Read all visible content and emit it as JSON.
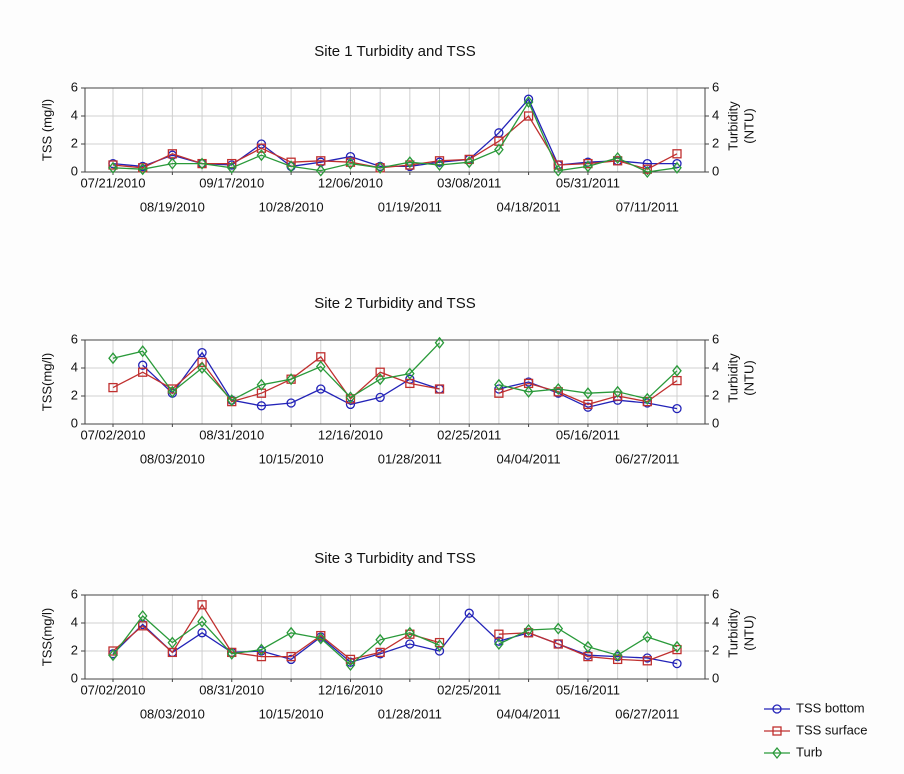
{
  "chart_data": [
    {
      "type": "line",
      "title": "Site 1 Turbidity and TSS",
      "ylabel": "TSS (mg/l)",
      "y2label": [
        "Turbidity",
        "(NTU)"
      ],
      "categories": [
        "07/21/2010",
        null,
        "08/19/2010",
        null,
        "09/17/2010",
        null,
        "10/28/2010",
        null,
        "12/06/2010",
        null,
        "01/19/2011",
        null,
        "03/08/2011",
        null,
        "04/18/2011",
        null,
        "05/31/2011",
        null,
        "07/11/2011",
        null
      ],
      "series": [
        {
          "name": "TSS bottom",
          "color": "#2323b8",
          "marker": "circle",
          "values": [
            0.6,
            0.4,
            1.2,
            0.6,
            0.5,
            2.0,
            0.4,
            0.7,
            1.1,
            0.4,
            0.4,
            0.7,
            0.9,
            2.8,
            5.2,
            0.5,
            0.7,
            0.8,
            0.6,
            0.6
          ]
        },
        {
          "name": "TSS surface",
          "color": "#c0302f",
          "marker": "square",
          "values": [
            0.5,
            0.3,
            1.3,
            0.6,
            0.6,
            1.7,
            0.7,
            0.8,
            0.7,
            0.3,
            0.5,
            0.8,
            0.9,
            2.2,
            4.0,
            0.5,
            0.6,
            0.8,
            0.2,
            1.3
          ]
        },
        {
          "name": "Turb",
          "color": "#2a9a3a",
          "marker": "diamond",
          "axis": "y2",
          "values": [
            0.3,
            0.2,
            0.6,
            0.6,
            0.3,
            1.2,
            0.4,
            0.1,
            0.6,
            0.3,
            0.7,
            0.5,
            0.7,
            1.6,
            5.0,
            0.1,
            0.4,
            1.0,
            0.0,
            0.3
          ]
        }
      ],
      "ylim": [
        0,
        6
      ],
      "yticks": [
        0,
        2,
        4,
        6
      ],
      "y2lim": [
        0,
        6
      ],
      "y2ticks": [
        0,
        2,
        4,
        6
      ],
      "grid": true
    },
    {
      "type": "line",
      "title": "Site 2 Turbidity and TSS",
      "ylabel": "TSS(mg/l)",
      "y2label": [
        "Turbidity",
        "(NTU)"
      ],
      "categories": [
        "07/02/2010",
        null,
        "08/03/2010",
        null,
        "08/31/2010",
        null,
        "10/15/2010",
        null,
        "12/16/2010",
        null,
        "01/28/2011",
        null,
        "02/25/2011",
        null,
        "04/04/2011",
        null,
        "05/16/2011",
        null,
        "06/27/2011",
        null
      ],
      "series": [
        {
          "name": "TSS bottom",
          "color": "#2323b8",
          "marker": "circle",
          "values": [
            null,
            4.2,
            2.2,
            5.1,
            1.7,
            1.3,
            1.5,
            2.5,
            1.4,
            1.9,
            3.2,
            2.5,
            null,
            2.5,
            3.0,
            2.2,
            1.2,
            1.7,
            1.5,
            1.1
          ]
        },
        {
          "name": "TSS surface",
          "color": "#c0302f",
          "marker": "square",
          "values": [
            2.6,
            3.7,
            2.5,
            4.4,
            1.6,
            2.2,
            3.2,
            4.8,
            1.8,
            3.7,
            2.9,
            2.5,
            null,
            2.2,
            2.9,
            2.3,
            1.4,
            2.0,
            1.6,
            3.1
          ]
        },
        {
          "name": "Turb",
          "color": "#2a9a3a",
          "marker": "diamond",
          "axis": "y2",
          "values": [
            4.7,
            5.2,
            2.3,
            4.0,
            1.7,
            2.8,
            3.2,
            4.1,
            1.9,
            3.2,
            3.6,
            5.8,
            null,
            2.8,
            2.3,
            2.5,
            2.2,
            2.3,
            1.8,
            3.8
          ]
        }
      ],
      "ylim": [
        0,
        6
      ],
      "yticks": [
        0,
        2,
        4,
        6
      ],
      "y2lim": [
        0,
        6
      ],
      "y2ticks": [
        0,
        2,
        4,
        6
      ],
      "grid": true
    },
    {
      "type": "line",
      "title": "Site 3 Turbidity and TSS",
      "ylabel": "TSS(mg/l)",
      "y2label": [
        "Turbidity",
        "(NTU)"
      ],
      "categories": [
        "07/02/2010",
        null,
        "08/03/2010",
        null,
        "08/31/2010",
        null,
        "10/15/2010",
        null,
        "12/16/2010",
        null,
        "01/28/2011",
        null,
        "02/25/2011",
        null,
        "04/04/2011",
        null,
        "05/16/2011",
        null,
        "06/27/2011",
        null
      ],
      "series": [
        {
          "name": "TSS bottom",
          "color": "#2323b8",
          "marker": "circle",
          "values": [
            1.8,
            3.9,
            1.9,
            3.3,
            1.9,
            2.0,
            1.4,
            3.0,
            1.2,
            1.8,
            2.5,
            2.0,
            4.7,
            2.7,
            3.3,
            2.5,
            1.7,
            1.6,
            1.5,
            1.1
          ]
        },
        {
          "name": "TSS surface",
          "color": "#c0302f",
          "marker": "square",
          "values": [
            2.0,
            3.8,
            1.9,
            5.3,
            1.9,
            1.6,
            1.6,
            3.1,
            1.4,
            1.9,
            3.2,
            2.6,
            null,
            3.2,
            3.3,
            2.5,
            1.6,
            1.4,
            1.3,
            2.1
          ]
        },
        {
          "name": "Turb",
          "color": "#2a9a3a",
          "marker": "diamond",
          "axis": "y2",
          "values": [
            1.7,
            4.5,
            2.6,
            4.1,
            1.8,
            2.1,
            3.3,
            2.9,
            1.0,
            2.8,
            3.3,
            2.4,
            null,
            2.5,
            3.5,
            3.6,
            2.3,
            1.7,
            3.0,
            2.3
          ]
        }
      ],
      "ylim": [
        0,
        6
      ],
      "yticks": [
        0,
        2,
        4,
        6
      ],
      "y2lim": [
        0,
        6
      ],
      "y2ticks": [
        0,
        2,
        4,
        6
      ],
      "grid": true,
      "legend": "outside lower right"
    }
  ]
}
